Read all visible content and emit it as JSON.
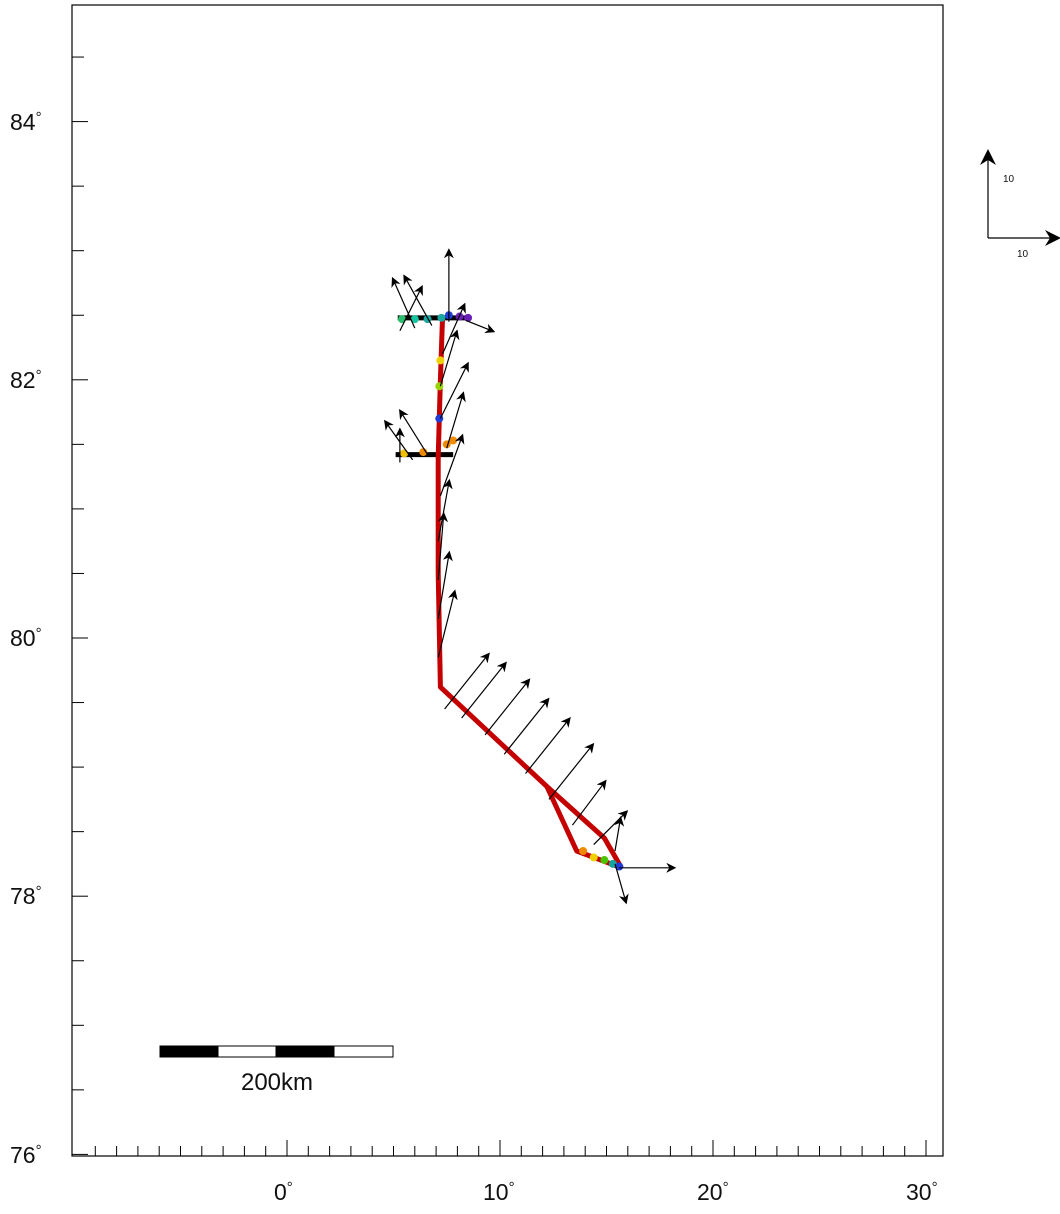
{
  "chart_data": {
    "type": "map",
    "title": "",
    "xlabel": "",
    "ylabel": "",
    "xlim": [
      -10,
      30.5
    ],
    "ylim": [
      75.9,
      84.9
    ],
    "x_ticks": [
      {
        "value": 0,
        "label": "0",
        "unit": "°"
      },
      {
        "value": 10,
        "label": "10",
        "unit": "°"
      },
      {
        "value": 20,
        "label": "20",
        "unit": "°"
      },
      {
        "value": 30,
        "label": "30",
        "unit": "°"
      }
    ],
    "y_ticks": [
      {
        "value": 76,
        "label": "76",
        "unit": "°"
      },
      {
        "value": 78,
        "label": "78",
        "unit": "°"
      },
      {
        "value": 80,
        "label": "80",
        "unit": "°"
      },
      {
        "value": 82,
        "label": "82",
        "unit": "°"
      },
      {
        "value": 84,
        "label": "84",
        "unit": "°"
      }
    ],
    "track": [
      {
        "lon": 15.7,
        "lat": 78.22
      },
      {
        "lon": 13.6,
        "lat": 78.35
      },
      {
        "lon": 12.2,
        "lat": 78.85
      },
      {
        "lon": 7.2,
        "lat": 79.62
      },
      {
        "lon": 7.1,
        "lat": 80.5
      },
      {
        "lon": 7.1,
        "lat": 81.4
      },
      {
        "lon": 7.2,
        "lat": 82.0
      },
      {
        "lon": 7.3,
        "lat": 82.48
      }
    ],
    "track_branch": [
      {
        "lon": 12.2,
        "lat": 78.85
      },
      {
        "lon": 14.9,
        "lat": 78.45
      },
      {
        "lon": 15.7,
        "lat": 78.22
      }
    ],
    "station_lines": [
      {
        "lat": 82.48,
        "lon_start": 5.2,
        "lon_end": 8.6
      },
      {
        "lat": 81.42,
        "lon_start": 5.1,
        "lon_end": 7.8
      }
    ],
    "colored_points": [
      {
        "lon": 8.5,
        "lat": 82.48,
        "color": "#6a1fb5"
      },
      {
        "lon": 8.1,
        "lat": 82.49,
        "color": "#6a1fb5"
      },
      {
        "lon": 7.6,
        "lat": 82.5,
        "color": "#1f3bd8"
      },
      {
        "lon": 7.25,
        "lat": 82.48,
        "color": "#1aa7a0"
      },
      {
        "lon": 6.6,
        "lat": 82.47,
        "color": "#1aa7a0"
      },
      {
        "lon": 6.0,
        "lat": 82.47,
        "color": "#15c4a0"
      },
      {
        "lon": 5.4,
        "lat": 82.47,
        "color": "#2dbd6e"
      },
      {
        "lon": 7.2,
        "lat": 82.15,
        "color": "#f0d000"
      },
      {
        "lon": 7.15,
        "lat": 81.95,
        "color": "#9ad400"
      },
      {
        "lon": 7.15,
        "lat": 81.7,
        "color": "#1f3bd8"
      },
      {
        "lon": 7.8,
        "lat": 81.53,
        "color": "#f08a00"
      },
      {
        "lon": 7.5,
        "lat": 81.5,
        "color": "#f08a00"
      },
      {
        "lon": 6.4,
        "lat": 81.44,
        "color": "#f08a00"
      },
      {
        "lon": 5.5,
        "lat": 81.43,
        "color": "#f0c000"
      },
      {
        "lon": 13.9,
        "lat": 78.35,
        "color": "#f08a00"
      },
      {
        "lon": 14.4,
        "lat": 78.3,
        "color": "#f0d000"
      },
      {
        "lon": 14.9,
        "lat": 78.28,
        "color": "#4ac400"
      },
      {
        "lon": 15.3,
        "lat": 78.25,
        "color": "#15a4a0"
      },
      {
        "lon": 15.6,
        "lat": 78.23,
        "color": "#1f3bd8"
      }
    ],
    "vectors": [
      {
        "lon": 7.6,
        "lat": 82.45,
        "u": 0.0,
        "v": 1.3
      },
      {
        "lon": 6.8,
        "lat": 82.42,
        "u": -0.5,
        "v": 0.9
      },
      {
        "lon": 6.0,
        "lat": 82.4,
        "u": -0.4,
        "v": 0.9
      },
      {
        "lon": 5.3,
        "lat": 82.38,
        "u": 0.4,
        "v": 0.8
      },
      {
        "lon": 8.4,
        "lat": 82.46,
        "u": 0.5,
        "v": -0.2
      },
      {
        "lon": 7.3,
        "lat": 82.2,
        "u": 0.4,
        "v": 0.9
      },
      {
        "lon": 7.2,
        "lat": 81.95,
        "u": 0.3,
        "v": 1.0
      },
      {
        "lon": 7.2,
        "lat": 81.7,
        "u": 0.5,
        "v": 1.0
      },
      {
        "lon": 7.5,
        "lat": 81.47,
        "u": 0.3,
        "v": 1.0
      },
      {
        "lon": 6.6,
        "lat": 81.42,
        "u": -0.5,
        "v": 0.8
      },
      {
        "lon": 5.9,
        "lat": 81.38,
        "u": -0.5,
        "v": 0.7
      },
      {
        "lon": 5.3,
        "lat": 81.36,
        "u": 0.0,
        "v": 0.6
      },
      {
        "lon": 7.2,
        "lat": 81.1,
        "u": 0.4,
        "v": 1.1
      },
      {
        "lon": 7.1,
        "lat": 80.75,
        "u": 0.2,
        "v": 1.1
      },
      {
        "lon": 7.1,
        "lat": 80.45,
        "u": 0.1,
        "v": 1.2
      },
      {
        "lon": 7.1,
        "lat": 80.15,
        "u": 0.2,
        "v": 1.2
      },
      {
        "lon": 7.1,
        "lat": 79.85,
        "u": 0.3,
        "v": 1.2
      },
      {
        "lon": 7.4,
        "lat": 79.45,
        "u": 0.8,
        "v": 1.0
      },
      {
        "lon": 8.2,
        "lat": 79.38,
        "u": 0.8,
        "v": 1.0
      },
      {
        "lon": 9.3,
        "lat": 79.25,
        "u": 0.8,
        "v": 1.0
      },
      {
        "lon": 10.2,
        "lat": 79.1,
        "u": 0.8,
        "v": 1.0
      },
      {
        "lon": 11.2,
        "lat": 78.95,
        "u": 0.8,
        "v": 1.0
      },
      {
        "lon": 12.3,
        "lat": 78.75,
        "u": 0.8,
        "v": 1.0
      },
      {
        "lon": 13.4,
        "lat": 78.55,
        "u": 0.6,
        "v": 0.8
      },
      {
        "lon": 14.4,
        "lat": 78.4,
        "u": 0.6,
        "v": 0.6
      },
      {
        "lon": 15.4,
        "lat": 78.35,
        "u": 0.1,
        "v": 0.6
      },
      {
        "lon": 15.6,
        "lat": 78.22,
        "u": 1.0,
        "v": 0.0
      },
      {
        "lon": 15.4,
        "lat": 78.25,
        "u": 0.2,
        "v": -0.7
      }
    ],
    "reference_vector": {
      "u_label": "10",
      "v_label": "10"
    },
    "scale_bar": {
      "label": "200km",
      "segments": 4
    }
  }
}
